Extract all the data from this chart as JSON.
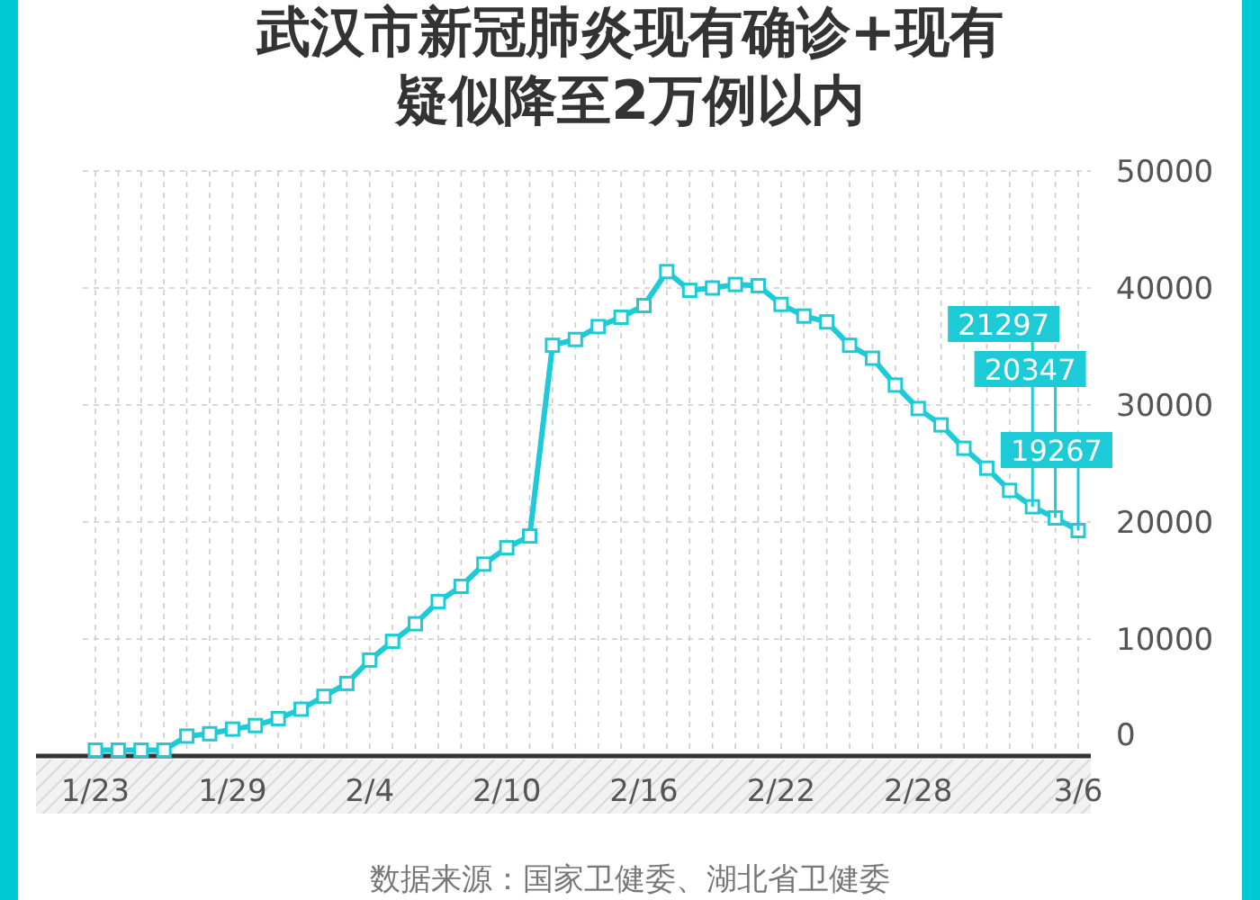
{
  "chart_data": {
    "type": "line",
    "title": "武汉市新冠肺炎现有确诊+现有疑似降至2万例以内",
    "categories": [
      "1/23",
      null,
      null,
      null,
      null,
      null,
      "1/29",
      null,
      null,
      null,
      null,
      null,
      "2/4",
      null,
      null,
      null,
      null,
      null,
      "2/10",
      null,
      null,
      null,
      null,
      null,
      "2/16",
      null,
      null,
      null,
      null,
      null,
      "2/22",
      null,
      null,
      null,
      null,
      null,
      "2/28",
      null,
      null,
      null,
      null,
      null,
      null,
      "3/6"
    ],
    "series": [
      {
        "color": "#1ccbd6",
        "values": [
          500,
          500,
          500,
          500,
          1700,
          1900,
          2300,
          2600,
          3200,
          4000,
          5100,
          6200,
          8200,
          9800,
          11300,
          13200,
          14500,
          16400,
          17800,
          18800,
          35100,
          35600,
          36700,
          37500,
          38500,
          41400,
          39800,
          40000,
          40300,
          40200,
          38600,
          37600,
          37100,
          35100,
          34000,
          31700,
          29700,
          28300,
          26300,
          24600,
          22700,
          21297,
          20347,
          19267
        ],
        "value_labels": [
          null,
          null,
          null,
          null,
          null,
          null,
          null,
          null,
          null,
          null,
          null,
          null,
          null,
          null,
          null,
          null,
          null,
          null,
          null,
          null,
          null,
          null,
          null,
          null,
          null,
          null,
          null,
          null,
          null,
          null,
          null,
          null,
          null,
          null,
          null,
          null,
          null,
          null,
          null,
          null,
          null,
          "21297",
          "20347",
          "19267"
        ]
      }
    ],
    "ylim": [
      0,
      50000
    ],
    "yticks": [
      0,
      10000,
      20000,
      30000,
      40000,
      50000
    ],
    "grid": true,
    "marker": "square",
    "line_style": "solid",
    "annotations": [
      "数据来源：国家卫健委、湖北省卫健委"
    ]
  }
}
